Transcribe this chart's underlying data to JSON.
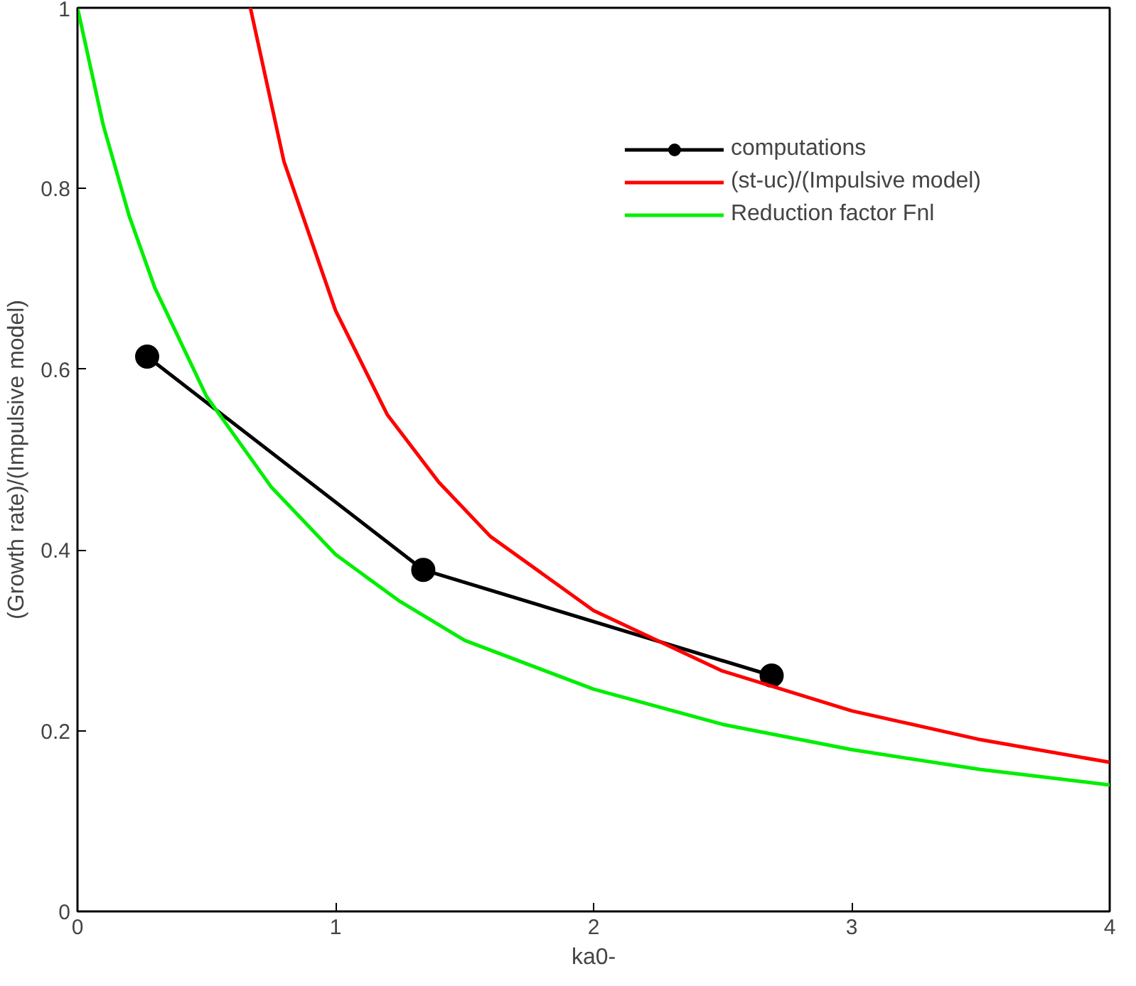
{
  "chart_data": {
    "type": "line",
    "xlabel": "ka0-",
    "ylabel": "(Growth rate)/(Impulsive model)",
    "xlim": [
      0,
      4
    ],
    "ylim": [
      0,
      1
    ],
    "xticks": [
      0,
      1,
      2,
      3,
      4
    ],
    "yticks": [
      0,
      0.2,
      0.4,
      0.6,
      0.8,
      1
    ],
    "grid": false,
    "legend": "top right",
    "series": [
      {
        "name": "computations",
        "color": "#000000",
        "marker": "circle",
        "x": [
          0.27,
          1.34,
          2.69
        ],
        "values": [
          0.614,
          0.378,
          0.261
        ]
      },
      {
        "name": "(st-uc)/(Impulsive model)",
        "color": "#ff0000",
        "marker": "none",
        "x": [
          0.67,
          0.8,
          1.0,
          1.2,
          1.4,
          1.6,
          2.0,
          2.5,
          3.0,
          3.5,
          4.0
        ],
        "values": [
          1.0,
          0.83,
          0.665,
          0.55,
          0.475,
          0.415,
          0.333,
          0.266,
          0.222,
          0.19,
          0.165
        ]
      },
      {
        "name": "Reduction factor Fnl",
        "color": "#00ee00",
        "marker": "none",
        "x": [
          0,
          0.1,
          0.2,
          0.3,
          0.5,
          0.75,
          1.0,
          1.25,
          1.5,
          2.0,
          2.5,
          3.0,
          3.5,
          4.0
        ],
        "values": [
          1.0,
          0.87,
          0.77,
          0.69,
          0.57,
          0.47,
          0.395,
          0.343,
          0.3,
          0.246,
          0.207,
          0.179,
          0.157,
          0.14
        ]
      }
    ]
  }
}
